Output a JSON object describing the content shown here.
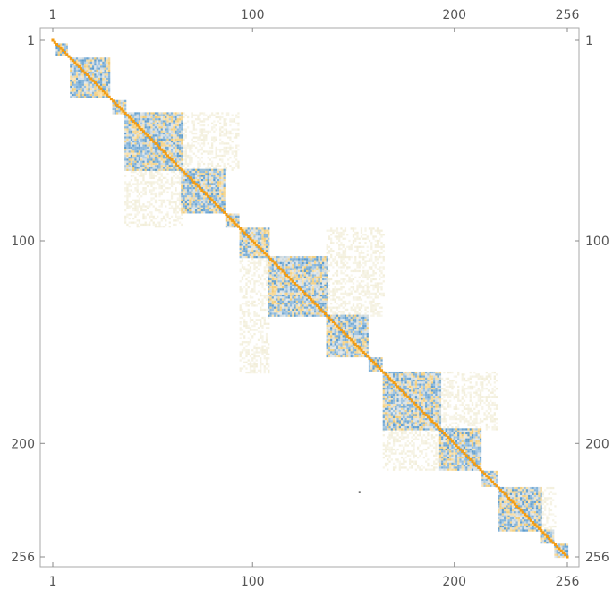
{
  "chart_data": {
    "type": "heatmap",
    "title": "",
    "xlabel": "",
    "ylabel": "",
    "n": 256,
    "x_ticks": [
      "1",
      "100",
      "200",
      "256"
    ],
    "y_ticks": [
      "1",
      "100",
      "200",
      "256"
    ],
    "tick_values": [
      1,
      100,
      200,
      256
    ],
    "blocks": [
      {
        "start": 3,
        "end": 8
      },
      {
        "start": 10,
        "end": 29
      },
      {
        "start": 31,
        "end": 37
      },
      {
        "start": 37,
        "end": 65
      },
      {
        "start": 65,
        "end": 86
      },
      {
        "start": 87,
        "end": 93
      },
      {
        "start": 94,
        "end": 108
      },
      {
        "start": 108,
        "end": 137
      },
      {
        "start": 137,
        "end": 157
      },
      {
        "start": 158,
        "end": 164
      },
      {
        "start": 165,
        "end": 193
      },
      {
        "start": 193,
        "end": 213
      },
      {
        "start": 214,
        "end": 221
      },
      {
        "start": 222,
        "end": 243
      },
      {
        "start": 243,
        "end": 249
      },
      {
        "start": 250,
        "end": 256
      }
    ],
    "faint_regions": [
      {
        "rows": [
          37,
          65
        ],
        "cols": [
          65,
          93
        ]
      },
      {
        "rows": [
          65,
          93
        ],
        "cols": [
          37,
          65
        ]
      },
      {
        "rows": [
          94,
          137
        ],
        "cols": [
          137,
          165
        ]
      },
      {
        "rows": [
          108,
          165
        ],
        "cols": [
          94,
          108
        ]
      },
      {
        "rows": [
          165,
          193
        ],
        "cols": [
          193,
          221
        ]
      },
      {
        "rows": [
          193,
          213
        ],
        "cols": [
          165,
          193
        ]
      },
      {
        "rows": [
          222,
          243
        ],
        "cols": [
          243,
          250
        ]
      }
    ],
    "colors": {
      "diagonal": "#f39c12",
      "high": "#f0c15a",
      "low": "#4a90c8",
      "mid": "#c7d3d8",
      "faint": "#ece6c8"
    },
    "outlier": {
      "row": 224,
      "col": 153
    }
  }
}
